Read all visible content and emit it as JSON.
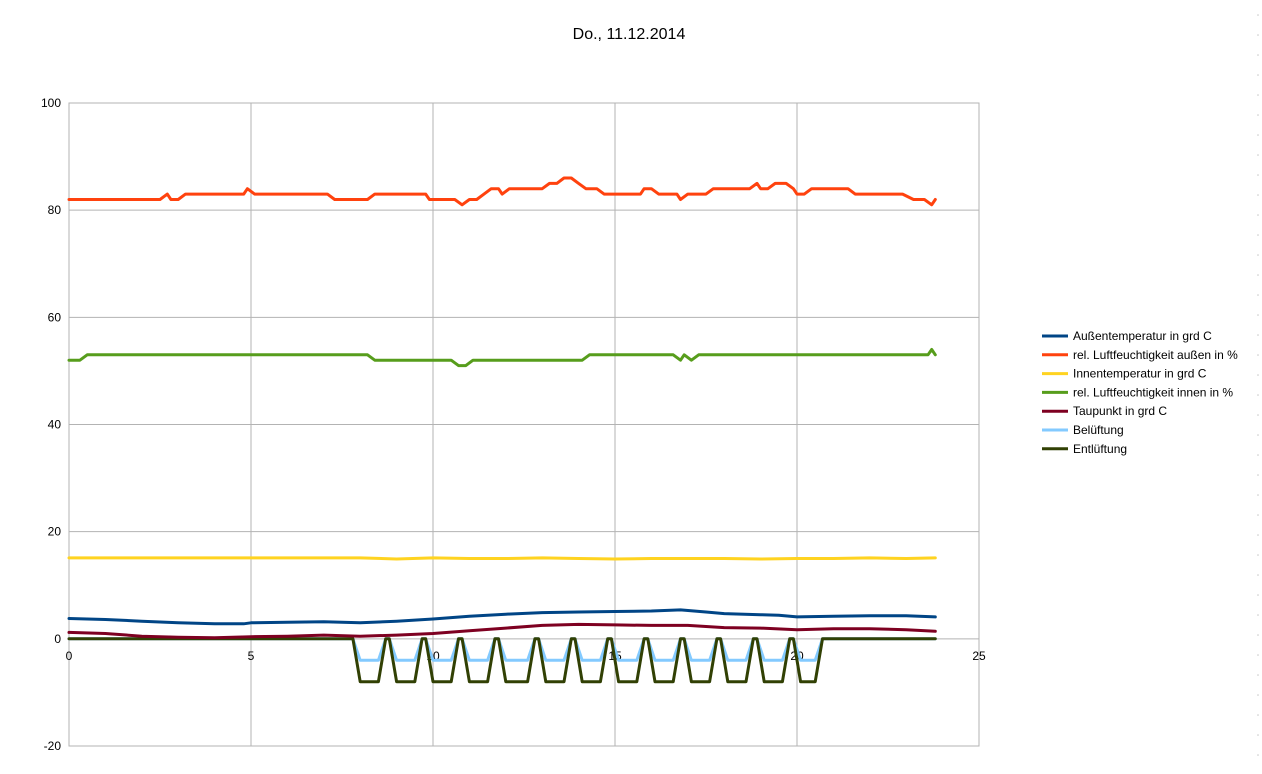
{
  "chart_data": {
    "type": "line",
    "title": "Do., 11.12.2014",
    "xlabel": "",
    "ylabel": "",
    "xlim": [
      0,
      25
    ],
    "ylim": [
      -20,
      100
    ],
    "x_ticks": [
      "0",
      "5",
      "10",
      "15",
      "20",
      "25"
    ],
    "y_ticks": [
      "-20",
      "0",
      "20",
      "40",
      "60",
      "80",
      "100"
    ],
    "grid": true,
    "legend_position": "right",
    "series": [
      {
        "name": "Außentemperatur in grd C",
        "color": "#004586",
        "points": [
          [
            0,
            3.8
          ],
          [
            1,
            3.6
          ],
          [
            2,
            3.3
          ],
          [
            3,
            3.0
          ],
          [
            4,
            2.8
          ],
          [
            4.8,
            2.8
          ],
          [
            5,
            3.0
          ],
          [
            6,
            3.1
          ],
          [
            7,
            3.2
          ],
          [
            8,
            3.0
          ],
          [
            9,
            3.3
          ],
          [
            10,
            3.7
          ],
          [
            11,
            4.2
          ],
          [
            12,
            4.6
          ],
          [
            13,
            4.9
          ],
          [
            14,
            5.0
          ],
          [
            15,
            5.1
          ],
          [
            16,
            5.2
          ],
          [
            16.8,
            5.4
          ],
          [
            17.5,
            5.0
          ],
          [
            18,
            4.7
          ],
          [
            19,
            4.5
          ],
          [
            19.5,
            4.4
          ],
          [
            20,
            4.1
          ],
          [
            21,
            4.2
          ],
          [
            22,
            4.3
          ],
          [
            23,
            4.3
          ],
          [
            23.8,
            4.1
          ]
        ]
      },
      {
        "name": "rel. Luftfeuchtigkeit außen in %",
        "color": "#ff420e",
        "points": [
          [
            0,
            82
          ],
          [
            2.5,
            82
          ],
          [
            2.7,
            83
          ],
          [
            2.8,
            82
          ],
          [
            3.0,
            82
          ],
          [
            3.2,
            83
          ],
          [
            4.8,
            83
          ],
          [
            4.9,
            84
          ],
          [
            5.1,
            83
          ],
          [
            7.1,
            83
          ],
          [
            7.3,
            82
          ],
          [
            8.2,
            82
          ],
          [
            8.4,
            83
          ],
          [
            9.8,
            83
          ],
          [
            9.9,
            82
          ],
          [
            10.6,
            82
          ],
          [
            10.8,
            81
          ],
          [
            11.0,
            82
          ],
          [
            11.2,
            82
          ],
          [
            11.4,
            83
          ],
          [
            11.6,
            84
          ],
          [
            11.8,
            84
          ],
          [
            11.9,
            83
          ],
          [
            12.1,
            84
          ],
          [
            13.0,
            84
          ],
          [
            13.2,
            85
          ],
          [
            13.4,
            85
          ],
          [
            13.6,
            86
          ],
          [
            13.8,
            86
          ],
          [
            14.0,
            85
          ],
          [
            14.2,
            84
          ],
          [
            14.5,
            84
          ],
          [
            14.7,
            83
          ],
          [
            15.7,
            83
          ],
          [
            15.8,
            84
          ],
          [
            16.0,
            84
          ],
          [
            16.2,
            83
          ],
          [
            16.7,
            83
          ],
          [
            16.8,
            82
          ],
          [
            17.0,
            83
          ],
          [
            17.5,
            83
          ],
          [
            17.7,
            84
          ],
          [
            18.7,
            84
          ],
          [
            18.9,
            85
          ],
          [
            19.0,
            84
          ],
          [
            19.2,
            84
          ],
          [
            19.4,
            85
          ],
          [
            19.7,
            85
          ],
          [
            19.9,
            84
          ],
          [
            20.0,
            83
          ],
          [
            20.2,
            83
          ],
          [
            20.4,
            84
          ],
          [
            21.4,
            84
          ],
          [
            21.6,
            83
          ],
          [
            22.9,
            83
          ],
          [
            23.2,
            82
          ],
          [
            23.5,
            82
          ],
          [
            23.7,
            81
          ],
          [
            23.8,
            82
          ]
        ]
      },
      {
        "name": "Innentemperatur in grd C",
        "color": "#ffd320",
        "points": [
          [
            0,
            15.1
          ],
          [
            2,
            15.1
          ],
          [
            4,
            15.1
          ],
          [
            6,
            15.1
          ],
          [
            8,
            15.1
          ],
          [
            9,
            14.9
          ],
          [
            10,
            15.1
          ],
          [
            11,
            15.0
          ],
          [
            12,
            15.0
          ],
          [
            13,
            15.1
          ],
          [
            14,
            15.0
          ],
          [
            15,
            14.9
          ],
          [
            16,
            15.0
          ],
          [
            17,
            15.0
          ],
          [
            18,
            15.0
          ],
          [
            19,
            14.9
          ],
          [
            20,
            15.0
          ],
          [
            21,
            15.0
          ],
          [
            22,
            15.1
          ],
          [
            23,
            15.0
          ],
          [
            23.8,
            15.1
          ]
        ]
      },
      {
        "name": "rel. Luftfeuchtigkeit innen in %",
        "color": "#579d1c",
        "points": [
          [
            0,
            52
          ],
          [
            0.3,
            52
          ],
          [
            0.5,
            53
          ],
          [
            8.2,
            53
          ],
          [
            8.4,
            52
          ],
          [
            10.5,
            52
          ],
          [
            10.7,
            51
          ],
          [
            10.9,
            51
          ],
          [
            11.1,
            52
          ],
          [
            14.1,
            52
          ],
          [
            14.3,
            53
          ],
          [
            16.6,
            53
          ],
          [
            16.8,
            52
          ],
          [
            16.9,
            53
          ],
          [
            17.1,
            52
          ],
          [
            17.3,
            53
          ],
          [
            23.6,
            53
          ],
          [
            23.7,
            54
          ],
          [
            23.8,
            53
          ]
        ]
      },
      {
        "name": "Taupunkt in grd C",
        "color": "#7e0021",
        "points": [
          [
            0,
            1.2
          ],
          [
            1,
            1.0
          ],
          [
            2,
            0.5
          ],
          [
            3,
            0.3
          ],
          [
            4,
            0.2
          ],
          [
            5,
            0.4
          ],
          [
            6,
            0.5
          ],
          [
            7,
            0.7
          ],
          [
            8,
            0.5
          ],
          [
            9,
            0.7
          ],
          [
            10,
            1.0
          ],
          [
            11,
            1.5
          ],
          [
            12,
            2.0
          ],
          [
            13,
            2.5
          ],
          [
            14,
            2.7
          ],
          [
            15,
            2.6
          ],
          [
            16,
            2.5
          ],
          [
            17,
            2.5
          ],
          [
            18,
            2.1
          ],
          [
            19,
            2.0
          ],
          [
            20,
            1.7
          ],
          [
            21,
            1.9
          ],
          [
            22,
            1.9
          ],
          [
            23,
            1.7
          ],
          [
            23.8,
            1.4
          ]
        ]
      },
      {
        "name": "Belüftung",
        "color": "#83caff",
        "points": [
          [
            0,
            0
          ],
          [
            7.8,
            0
          ],
          [
            8.0,
            -4
          ],
          [
            8.5,
            -4
          ],
          [
            8.7,
            0
          ],
          [
            8.8,
            0
          ],
          [
            9.0,
            -4
          ],
          [
            9.5,
            -4
          ],
          [
            9.7,
            0
          ],
          [
            9.8,
            0
          ],
          [
            10.0,
            -4
          ],
          [
            10.5,
            -4
          ],
          [
            10.7,
            0
          ],
          [
            10.8,
            0
          ],
          [
            11.0,
            -4
          ],
          [
            11.5,
            -4
          ],
          [
            11.7,
            0
          ],
          [
            11.8,
            0
          ],
          [
            12.0,
            -4
          ],
          [
            12.6,
            -4
          ],
          [
            12.8,
            0
          ],
          [
            12.9,
            0
          ],
          [
            13.1,
            -4
          ],
          [
            13.6,
            -4
          ],
          [
            13.8,
            0
          ],
          [
            13.9,
            0
          ],
          [
            14.1,
            -4
          ],
          [
            14.6,
            -4
          ],
          [
            14.8,
            0
          ],
          [
            14.9,
            0
          ],
          [
            15.1,
            -4
          ],
          [
            15.6,
            -4
          ],
          [
            15.8,
            0
          ],
          [
            15.9,
            0
          ],
          [
            16.1,
            -4
          ],
          [
            16.6,
            -4
          ],
          [
            16.8,
            0
          ],
          [
            16.9,
            0
          ],
          [
            17.1,
            -4
          ],
          [
            17.6,
            -4
          ],
          [
            17.8,
            0
          ],
          [
            17.9,
            0
          ],
          [
            18.1,
            -4
          ],
          [
            18.6,
            -4
          ],
          [
            18.8,
            0
          ],
          [
            18.9,
            0
          ],
          [
            19.1,
            -4
          ],
          [
            19.6,
            -4
          ],
          [
            19.8,
            0
          ],
          [
            19.9,
            0
          ],
          [
            20.1,
            -4
          ],
          [
            20.5,
            -4
          ],
          [
            20.7,
            0
          ],
          [
            23.8,
            0
          ]
        ]
      },
      {
        "name": "Entlüftung",
        "color": "#314004",
        "points": [
          [
            0,
            0
          ],
          [
            7.8,
            0
          ],
          [
            8.0,
            -8
          ],
          [
            8.5,
            -8
          ],
          [
            8.7,
            0
          ],
          [
            8.8,
            0
          ],
          [
            9.0,
            -8
          ],
          [
            9.5,
            -8
          ],
          [
            9.7,
            0
          ],
          [
            9.8,
            0
          ],
          [
            10.0,
            -8
          ],
          [
            10.5,
            -8
          ],
          [
            10.7,
            0
          ],
          [
            10.8,
            0
          ],
          [
            11.0,
            -8
          ],
          [
            11.5,
            -8
          ],
          [
            11.7,
            0
          ],
          [
            11.8,
            0
          ],
          [
            12.0,
            -8
          ],
          [
            12.6,
            -8
          ],
          [
            12.8,
            0
          ],
          [
            12.9,
            0
          ],
          [
            13.1,
            -8
          ],
          [
            13.6,
            -8
          ],
          [
            13.8,
            0
          ],
          [
            13.9,
            0
          ],
          [
            14.1,
            -8
          ],
          [
            14.6,
            -8
          ],
          [
            14.8,
            0
          ],
          [
            14.9,
            0
          ],
          [
            15.1,
            -8
          ],
          [
            15.6,
            -8
          ],
          [
            15.8,
            0
          ],
          [
            15.9,
            0
          ],
          [
            16.1,
            -8
          ],
          [
            16.6,
            -8
          ],
          [
            16.8,
            0
          ],
          [
            16.9,
            0
          ],
          [
            17.1,
            -8
          ],
          [
            17.6,
            -8
          ],
          [
            17.8,
            0
          ],
          [
            17.9,
            0
          ],
          [
            18.1,
            -8
          ],
          [
            18.6,
            -8
          ],
          [
            18.8,
            0
          ],
          [
            18.9,
            0
          ],
          [
            19.1,
            -8
          ],
          [
            19.6,
            -8
          ],
          [
            19.8,
            0
          ],
          [
            19.9,
            0
          ],
          [
            20.1,
            -8
          ],
          [
            20.5,
            -8
          ],
          [
            20.7,
            0
          ],
          [
            23.8,
            0
          ]
        ]
      }
    ]
  }
}
